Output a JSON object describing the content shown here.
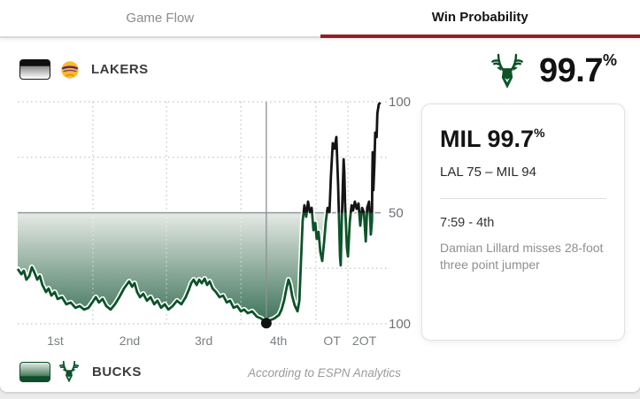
{
  "tabs": {
    "game_flow": "Game Flow",
    "win_probability": "Win Probability"
  },
  "header": {
    "away_team_label": "LAKERS",
    "featured_team": "BUCKS",
    "featured_value": "99.7",
    "featured_unit": "%"
  },
  "tooltip": {
    "headline": "MIL 99.7",
    "headline_unit": "%",
    "score": "LAL 75 – MIL 94",
    "clock": "7:59 - 4th",
    "play": "Damian Lillard misses 28-foot three point jumper"
  },
  "footer": {
    "home_team_label": "BUCKS",
    "attribution": "According to ESPN Analytics"
  },
  "colors": {
    "accent_red": "#8f2126",
    "bucks_green": "#0d5228",
    "lakers_gold": "#fdb927",
    "lakers_purple": "#552583"
  },
  "chart_data": {
    "type": "line",
    "title": "Win Probability",
    "orientation_note": "y-axis mirrored: top 100 = LAL wins, bottom 100 = MIL wins, 50 = even",
    "x_axis": {
      "label": "Game period",
      "period_labels": [
        "1st",
        "2nd",
        "3rd",
        "4th",
        "OT",
        "2OT"
      ],
      "label_centers_t": [
        10.35,
        30.85,
        51.25,
        71.85,
        86.6,
        95.5
      ],
      "period_boundaries_t": [
        20.7,
        41.0,
        61.5,
        82.2,
        91.0
      ]
    },
    "y_axis": {
      "ticks": [
        {
          "p": 0,
          "label": "100"
        },
        {
          "p": 50,
          "label": "50"
        },
        {
          "p": 100,
          "label": "100"
        }
      ],
      "top_meaning": "LAL 100%",
      "bottom_meaning": "MIL 100%"
    },
    "gridlines": {
      "h_dotted_p": [
        0,
        25,
        75,
        100
      ],
      "h_solid_p": [
        50
      ],
      "v_dotted_t": [
        20.7,
        41.0,
        61.5,
        82.2,
        91.0
      ]
    },
    "legend_position": "team chips top-left (LAKERS) and bottom-left (BUCKS)",
    "cursor": {
      "t": 68.5,
      "p": 99.7,
      "tooltip": "MIL 99.7% — LAL 75 – MIL 94 — 7:59 - 4th"
    },
    "series": [
      {
        "name": "MIL win probability (%) over game time (t = % of game elapsed)",
        "points": [
          [
            0,
            75.3
          ],
          [
            1,
            77.7
          ],
          [
            1.7,
            76.1
          ],
          [
            2.4,
            80.1
          ],
          [
            3.2,
            78.5
          ],
          [
            3.9,
            74.5
          ],
          [
            4.6,
            76.9
          ],
          [
            5.4,
            80.1
          ],
          [
            6.1,
            78.5
          ],
          [
            6.8,
            82.5
          ],
          [
            7.8,
            85.7
          ],
          [
            8.5,
            84.1
          ],
          [
            9.3,
            87.3
          ],
          [
            10.2,
            85.7
          ],
          [
            11,
            88.8
          ],
          [
            12.2,
            88
          ],
          [
            13.4,
            91.2
          ],
          [
            14.6,
            90.4
          ],
          [
            15.9,
            92.8
          ],
          [
            17.1,
            92
          ],
          [
            18.3,
            93.6
          ],
          [
            19.5,
            92.8
          ],
          [
            20.7,
            90
          ],
          [
            21.5,
            88
          ],
          [
            22.4,
            90.4
          ],
          [
            23.4,
            88.8
          ],
          [
            24.4,
            92
          ],
          [
            25.6,
            93.6
          ],
          [
            26.8,
            91.2
          ],
          [
            28,
            88
          ],
          [
            29.3,
            84.1
          ],
          [
            30,
            82.5
          ],
          [
            30.7,
            80.9
          ],
          [
            31.5,
            83.3
          ],
          [
            32.2,
            81.7
          ],
          [
            32.9,
            85.7
          ],
          [
            33.7,
            88
          ],
          [
            34.6,
            86.5
          ],
          [
            35.6,
            89.6
          ],
          [
            36.6,
            88
          ],
          [
            37.6,
            91.2
          ],
          [
            38.5,
            89.6
          ],
          [
            39.5,
            92.8
          ],
          [
            40.5,
            91.2
          ],
          [
            41.5,
            93.6
          ],
          [
            42.7,
            92
          ],
          [
            43.9,
            89.6
          ],
          [
            45.1,
            91.2
          ],
          [
            46.3,
            88
          ],
          [
            47.1,
            84.9
          ],
          [
            47.8,
            81.7
          ],
          [
            48.5,
            80.1
          ],
          [
            49.3,
            82.5
          ],
          [
            50,
            80.1
          ],
          [
            50.7,
            81.7
          ],
          [
            51.5,
            79.7
          ],
          [
            52.2,
            82.5
          ],
          [
            52.9,
            80.9
          ],
          [
            53.7,
            84.1
          ],
          [
            54.6,
            85.7
          ],
          [
            55.6,
            88
          ],
          [
            56.6,
            87.3
          ],
          [
            57.6,
            90.4
          ],
          [
            58.5,
            89.6
          ],
          [
            59.5,
            92.8
          ],
          [
            60.5,
            92
          ],
          [
            61.5,
            94.4
          ],
          [
            62.4,
            93.6
          ],
          [
            63.4,
            95.2
          ],
          [
            64.6,
            94.4
          ],
          [
            65.9,
            96.8
          ],
          [
            67.1,
            97.6
          ],
          [
            68.5,
            99.7
          ],
          [
            69.5,
            98.4
          ],
          [
            70.7,
            97.6
          ],
          [
            72,
            96
          ],
          [
            72.7,
            93.6
          ],
          [
            73.4,
            89.6
          ],
          [
            74.1,
            83.7
          ],
          [
            74.6,
            80.1
          ],
          [
            75.1,
            82.5
          ],
          [
            75.6,
            87.3
          ],
          [
            76.3,
            91.6
          ],
          [
            77.1,
            94.4
          ],
          [
            77.6,
            89.6
          ],
          [
            78,
            73.7
          ],
          [
            78.5,
            53.8
          ],
          [
            79,
            46.6
          ],
          [
            79.5,
            51.8
          ],
          [
            80,
            45
          ],
          [
            80.5,
            49.8
          ],
          [
            81,
            47.8
          ],
          [
            81.5,
            57.8
          ],
          [
            82,
            54.6
          ],
          [
            82.4,
            61.8
          ],
          [
            82.9,
            58.6
          ],
          [
            83.4,
            67.7
          ],
          [
            83.9,
            71.7
          ],
          [
            84.4,
            63.7
          ],
          [
            84.9,
            53.8
          ],
          [
            85.4,
            47.8
          ],
          [
            85.9,
            49.8
          ],
          [
            86.3,
            33.9
          ],
          [
            86.8,
            18.7
          ],
          [
            87.3,
            21.1
          ],
          [
            87.8,
            15.9
          ],
          [
            88.3,
            37.8
          ],
          [
            88.8,
            69.7
          ],
          [
            89,
            73.7
          ],
          [
            89.3,
            53.8
          ],
          [
            89.8,
            25.9
          ],
          [
            90,
            31.9
          ],
          [
            90.2,
            45.8
          ],
          [
            90.7,
            65.7
          ],
          [
            91,
            69.7
          ],
          [
            91.5,
            53.8
          ],
          [
            92,
            46.6
          ],
          [
            92.4,
            49
          ],
          [
            92.9,
            45
          ],
          [
            93.4,
            48.2
          ],
          [
            93.9,
            45.8
          ],
          [
            94.4,
            55.8
          ],
          [
            94.9,
            47.8
          ],
          [
            95.4,
            49.8
          ],
          [
            95.9,
            62.9
          ],
          [
            96.3,
            47.8
          ],
          [
            96.8,
            45
          ],
          [
            97.1,
            51.8
          ],
          [
            97.3,
            59.8
          ],
          [
            97.6,
            53.8
          ],
          [
            97.7,
            33.9
          ],
          [
            97.8,
            22.7
          ],
          [
            97.9,
            30.7
          ],
          [
            98,
            39.8
          ],
          [
            98.3,
            27.9
          ],
          [
            98.5,
            13.9
          ],
          [
            98.9,
            15.9
          ],
          [
            99.1,
            5.2
          ],
          [
            99.5,
            1.2
          ],
          [
            99.9,
            0.3
          ]
        ]
      }
    ],
    "style": {
      "line_above_50": "#141414",
      "line_below_50": "#0c5329",
      "halo": "#ffffff",
      "fill_top": "#e6eae6",
      "fill_bottom": "#3a7156",
      "grid": "#c3c8c3",
      "mid_line": "#8e9494",
      "cursor_line": "#8b9095",
      "dot": "#111111",
      "tick_color": "#6d7276",
      "period_label_color": "#7b7f82"
    }
  }
}
